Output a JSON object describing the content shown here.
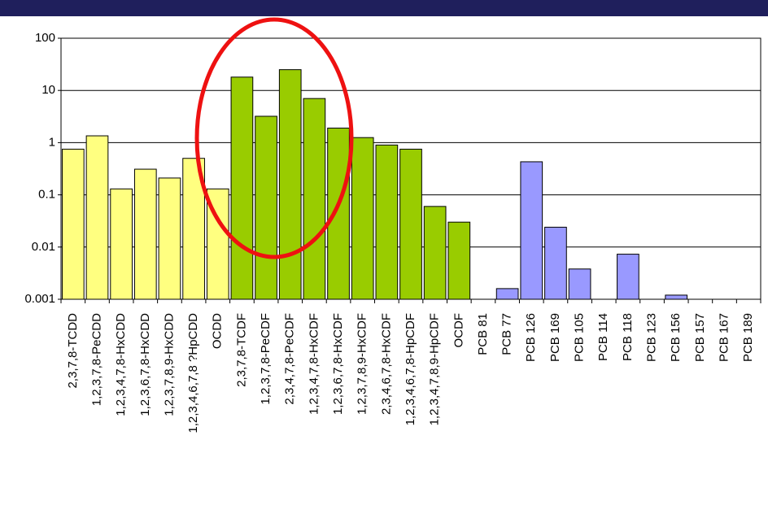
{
  "chart_data": {
    "type": "bar",
    "categories": [
      "2,3,7,8-TCDD",
      "1,2,3,7,8-PeCDD",
      "1,2,3,4,7,8-HxCDD",
      "1,2,3,6,7,8-HxCDD",
      "1,2,3,7,8,9-HxCDD",
      "1,2,3,4,6,7,8 ?HpCDD",
      "OCDD",
      "2,3,7,8-TCDF",
      "1,2,3,7,8-PeCDF",
      "2,3,4,7,8-PeCDF",
      "1,2,3,4,7,8-HxCDF",
      "1,2,3,6,7,8-HxCDF",
      "1,2,3,7,8,9-HxCDF",
      "2,3,4,6,7,8-HxCDF",
      "1,2,3,4,6,7,8-HpCDF",
      "1,2,3,4,7,8,9-HpCDF",
      "OCDF",
      "PCB 81",
      "PCB 77",
      "PCB 126",
      "PCB 169",
      "PCB 105",
      "PCB 114",
      "PCB 118",
      "PCB 123",
      "PCB 156",
      "PCB 157",
      "PCB 167",
      "PCB 189"
    ],
    "values": [
      0.75,
      1.35,
      0.13,
      0.31,
      0.21,
      0.5,
      0.13,
      18,
      3.2,
      25,
      7,
      1.9,
      1.25,
      0.9,
      0.75,
      0.06,
      0.03,
      null,
      0.0016,
      0.43,
      0.024,
      0.0038,
      null,
      0.0073,
      null,
      0.0012,
      null,
      null,
      null
    ],
    "colors": [
      "#ffff80",
      "#ffff80",
      "#ffff80",
      "#ffff80",
      "#ffff80",
      "#ffff80",
      "#ffff80",
      "#99cc00",
      "#99cc00",
      "#99cc00",
      "#99cc00",
      "#99cc00",
      "#99cc00",
      "#99cc00",
      "#99cc00",
      "#99cc00",
      "#99cc00",
      "#9999ff",
      "#9999ff",
      "#9999ff",
      "#9999ff",
      "#9999ff",
      "#9999ff",
      "#9999ff",
      "#9999ff",
      "#9999ff",
      "#9999ff",
      "#9999ff",
      "#9999ff"
    ],
    "log_scale": true,
    "ylim": [
      0.001,
      100
    ],
    "yticks": [
      0.001,
      0.01,
      0.1,
      1,
      10,
      100
    ],
    "grid": true
  }
}
